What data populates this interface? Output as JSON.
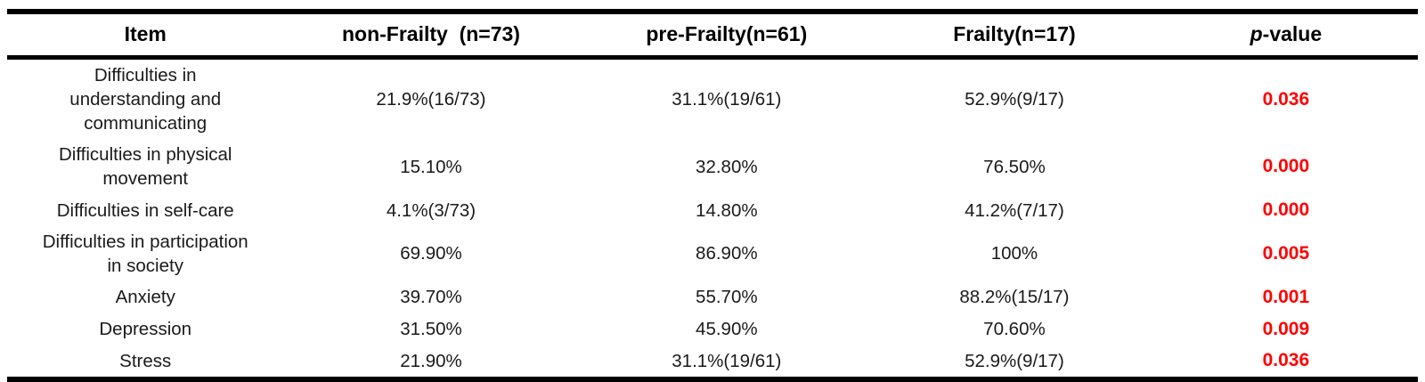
{
  "table": {
    "accent_color": "#ff0000",
    "border_color": "#000000",
    "header": {
      "item": "Item",
      "non_frailty": "non-Frailty  (n=73)",
      "pre_frailty": "pre-Frailty(n=61)",
      "frailty": "Frailty(n=17)",
      "p_italic": "p",
      "p_rest": "-value"
    },
    "rows": [
      {
        "item": [
          "Difficulties in",
          "understanding and",
          "communicating"
        ],
        "non_frailty": "21.9%(16/73)",
        "pre_frailty": "31.1%(19/61)",
        "frailty": "52.9%(9/17)",
        "p_value": "0.036"
      },
      {
        "item": [
          "Difficulties in physical",
          "movement"
        ],
        "non_frailty": "15.10%",
        "pre_frailty": "32.80%",
        "frailty": "76.50%",
        "p_value": "0.000"
      },
      {
        "item": [
          "Difficulties in self-care"
        ],
        "non_frailty": "4.1%(3/73)",
        "pre_frailty": "14.80%",
        "frailty": "41.2%(7/17)",
        "p_value": "0.000"
      },
      {
        "item": [
          "Difficulties in participation",
          "in society"
        ],
        "non_frailty": "69.90%",
        "pre_frailty": "86.90%",
        "frailty": "100%",
        "p_value": "0.005"
      },
      {
        "item": [
          "Anxiety"
        ],
        "non_frailty": "39.70%",
        "pre_frailty": "55.70%",
        "frailty": "88.2%(15/17)",
        "p_value": "0.001"
      },
      {
        "item": [
          "Depression"
        ],
        "non_frailty": "31.50%",
        "pre_frailty": "45.90%",
        "frailty": "70.60%",
        "p_value": "0.009"
      },
      {
        "item": [
          "Stress"
        ],
        "non_frailty": "21.90%",
        "pre_frailty": "31.1%(19/61)",
        "frailty": "52.9%(9/17)",
        "p_value": "0.036"
      }
    ]
  }
}
